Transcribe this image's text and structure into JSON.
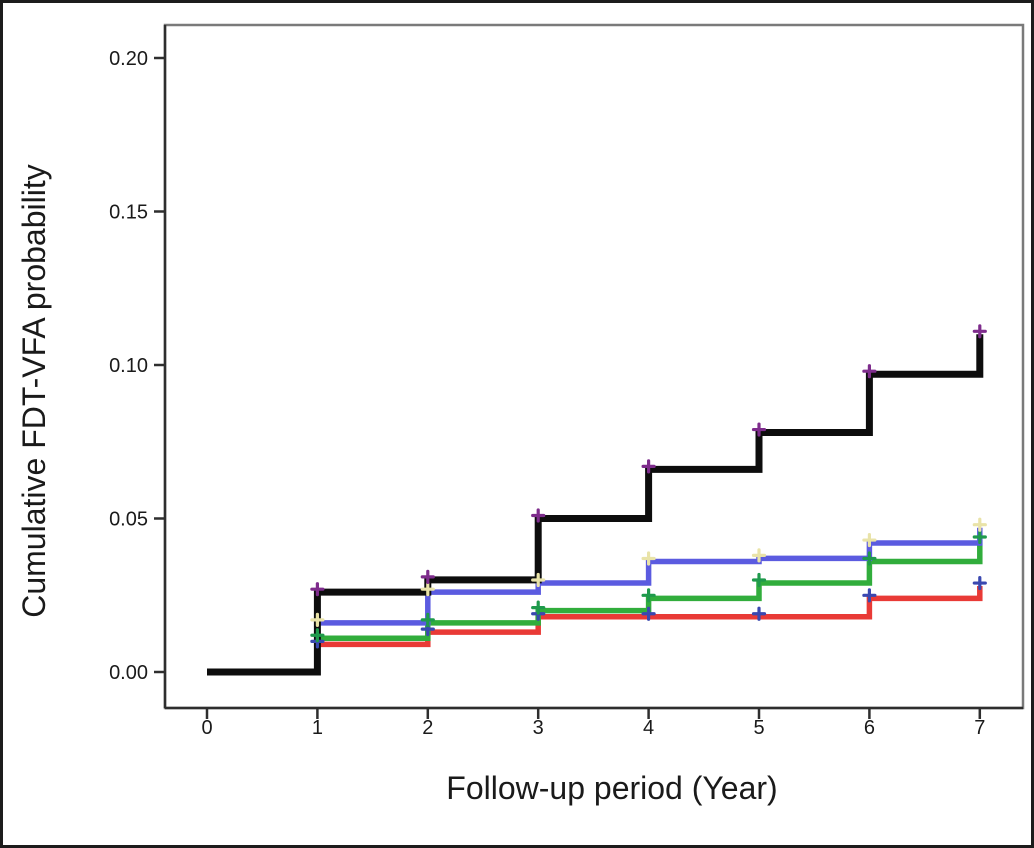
{
  "chart_data": {
    "type": "line",
    "subtype": "kaplan-meier-cumulative-step",
    "title": "",
    "xlabel": "Follow-up period (Year)",
    "ylabel": "Cumulative FDT-VFA probability",
    "xlim": [
      -0.38,
      7.39
    ],
    "ylim": [
      -0.012,
      0.211
    ],
    "grid": "off",
    "legend": "none",
    "x_ticks": [
      {
        "v": 0,
        "label": "0"
      },
      {
        "v": 1,
        "label": "1"
      },
      {
        "v": 2,
        "label": "2"
      },
      {
        "v": 3,
        "label": "3"
      },
      {
        "v": 4,
        "label": "4"
      },
      {
        "v": 5,
        "label": "5"
      },
      {
        "v": 6,
        "label": "6"
      },
      {
        "v": 7,
        "label": "7"
      }
    ],
    "y_ticks": [
      {
        "v": 0.0,
        "label": "0.00"
      },
      {
        "v": 0.05,
        "label": "0.05"
      },
      {
        "v": 0.1,
        "label": "0.10"
      },
      {
        "v": 0.15,
        "label": "0.15"
      },
      {
        "v": 0.2,
        "label": "0.20"
      }
    ],
    "years": [
      0,
      1,
      2,
      3,
      4,
      5,
      6,
      7
    ],
    "marker": "+",
    "marker_years": [
      1,
      2,
      3,
      4,
      5,
      6,
      7
    ],
    "series": [
      {
        "key": "black",
        "color": "#0d0d0d",
        "marker_color": "#7e2c8c",
        "values": [
          0,
          0.026,
          0.03,
          0.05,
          0.066,
          0.078,
          0.097,
          0.11
        ]
      },
      {
        "key": "blue",
        "color": "#5b5be0",
        "marker_color": "#e9e3a8",
        "values": [
          0,
          0.016,
          0.026,
          0.029,
          0.036,
          0.037,
          0.042,
          0.047
        ]
      },
      {
        "key": "green",
        "color": "#31ad3c",
        "marker_color": "#1f9a4c",
        "values": [
          0,
          0.011,
          0.016,
          0.02,
          0.024,
          0.029,
          0.036,
          0.043
        ]
      },
      {
        "key": "red",
        "color": "#e93a36",
        "marker_color": "#3a48b0",
        "values": [
          0,
          0.009,
          0.013,
          0.018,
          0.018,
          0.018,
          0.024,
          0.028
        ]
      }
    ],
    "colors": {
      "frame_border": "#1c1c1c",
      "plot_box_border": "#7a7a7a",
      "axis_line": "#2e2e2e"
    }
  }
}
